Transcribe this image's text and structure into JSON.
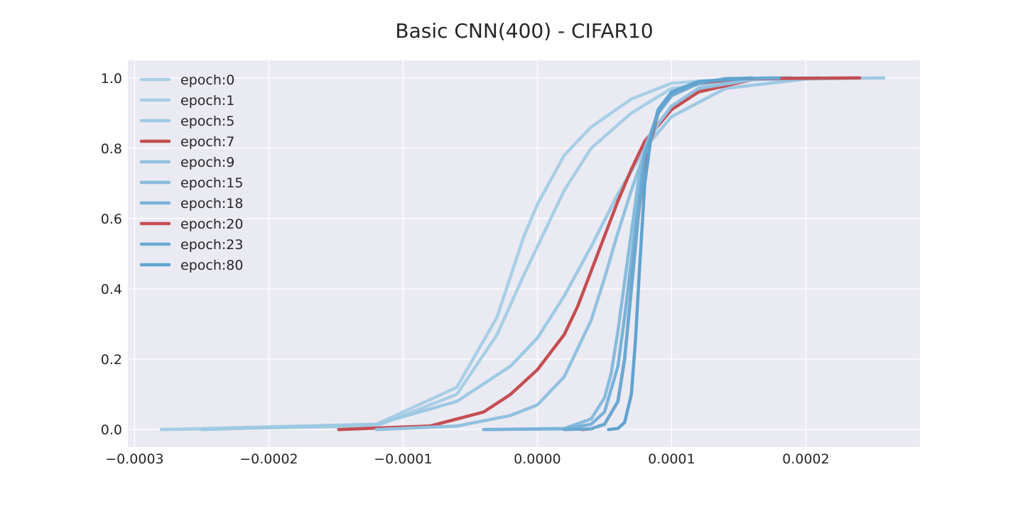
{
  "chart_data": {
    "type": "line",
    "title": "Basic CNN(400) - CIFAR10",
    "xlabel": "",
    "ylabel": "",
    "xlim": [
      -0.000305,
      0.000285
    ],
    "ylim": [
      -0.05,
      1.05
    ],
    "x_ticks": [
      -0.0003,
      -0.0002,
      -0.0001,
      0.0,
      0.0001,
      0.0002
    ],
    "x_tick_labels": [
      "−0.0003",
      "−0.0002",
      "−0.0001",
      "0.0000",
      "0.0001",
      "0.0002"
    ],
    "y_ticks": [
      0.0,
      0.2,
      0.4,
      0.6,
      0.8,
      1.0
    ],
    "y_tick_labels": [
      "0.0",
      "0.2",
      "0.4",
      "0.6",
      "0.8",
      "1.0"
    ],
    "grid": true,
    "background": "#eaeaf2",
    "grid_color": "#ffffff",
    "legend_position": "upper-left",
    "series": [
      {
        "name": "epoch:0",
        "color": "#a9cfe6",
        "x": [
          -0.00028,
          -0.00012,
          -6e-05,
          -3e-05,
          -1e-05,
          0.0,
          1e-05,
          2e-05,
          4e-05,
          7e-05,
          0.0001,
          0.00015,
          0.00019
        ],
        "y": [
          0.0,
          0.015,
          0.12,
          0.32,
          0.55,
          0.64,
          0.71,
          0.78,
          0.86,
          0.94,
          0.985,
          0.998,
          1.0
        ]
      },
      {
        "name": "epoch:1",
        "color": "#a8cee5",
        "x": [
          -0.00028,
          -0.00012,
          -6e-05,
          -3e-05,
          -1e-05,
          0.0,
          1e-05,
          2e-05,
          4e-05,
          7e-05,
          0.0001,
          0.00015,
          0.00019
        ],
        "y": [
          0.0,
          0.01,
          0.1,
          0.27,
          0.44,
          0.52,
          0.6,
          0.68,
          0.8,
          0.9,
          0.97,
          0.995,
          1.0
        ]
      },
      {
        "name": "epoch:5",
        "color": "#9ec9e3",
        "x": [
          -0.00025,
          -0.00012,
          -6e-05,
          -2e-05,
          0.0,
          2e-05,
          4e-05,
          6e-05,
          8e-05,
          0.0001,
          0.00014,
          0.0002,
          0.000258
        ],
        "y": [
          0.0,
          0.015,
          0.08,
          0.18,
          0.26,
          0.38,
          0.52,
          0.67,
          0.8,
          0.89,
          0.97,
          0.997,
          1.0
        ]
      },
      {
        "name": "epoch:7",
        "color": "#c44e52",
        "x": [
          -0.000148,
          -8e-05,
          -4e-05,
          -2e-05,
          0.0,
          2e-05,
          3e-05,
          4e-05,
          5e-05,
          6e-05,
          7e-05,
          8e-05,
          0.0001,
          0.00012,
          0.00016,
          0.00019
        ],
        "y": [
          0.0,
          0.01,
          0.05,
          0.1,
          0.17,
          0.27,
          0.35,
          0.45,
          0.55,
          0.65,
          0.74,
          0.82,
          0.91,
          0.96,
          0.995,
          1.0
        ]
      },
      {
        "name": "epoch:9",
        "color": "#92c1e0",
        "x": [
          -0.00012,
          -6e-05,
          -2e-05,
          0.0,
          2e-05,
          4e-05,
          5e-05,
          6e-05,
          7e-05,
          8e-05,
          9e-05,
          0.0001,
          0.00012,
          0.00016,
          0.00022
        ],
        "y": [
          0.0,
          0.01,
          0.04,
          0.07,
          0.15,
          0.31,
          0.43,
          0.56,
          0.68,
          0.79,
          0.87,
          0.92,
          0.97,
          0.995,
          1.0
        ]
      },
      {
        "name": "epoch:15",
        "color": "#87bbdc",
        "x": [
          -4e-05,
          2e-05,
          4e-05,
          5e-05,
          5.5e-05,
          6e-05,
          6.5e-05,
          7e-05,
          7.5e-05,
          8e-05,
          9e-05,
          0.0001,
          0.00012,
          0.00016,
          0.00021
        ],
        "y": [
          0.0,
          0.003,
          0.03,
          0.09,
          0.16,
          0.28,
          0.42,
          0.56,
          0.7,
          0.8,
          0.9,
          0.95,
          0.985,
          0.998,
          1.0
        ]
      },
      {
        "name": "epoch:18",
        "color": "#79b2d8",
        "x": [
          -4e-05,
          2e-05,
          4e-05,
          5e-05,
          6e-05,
          6.5e-05,
          7e-05,
          7.5e-05,
          8e-05,
          9e-05,
          0.0001,
          0.00012,
          0.00015,
          0.00019
        ],
        "y": [
          0.0,
          0.002,
          0.015,
          0.05,
          0.18,
          0.32,
          0.48,
          0.64,
          0.78,
          0.9,
          0.95,
          0.985,
          0.998,
          1.0
        ]
      },
      {
        "name": "epoch:20",
        "color": "#c44e52",
        "x": [
          3.3e-05,
          4e-05,
          5e-05,
          6e-05,
          6.5e-05,
          7e-05,
          7.5e-05,
          8e-05,
          9e-05,
          0.0001,
          0.00012,
          0.00015,
          0.00024
        ],
        "y": [
          0.0,
          0.002,
          0.015,
          0.08,
          0.2,
          0.4,
          0.6,
          0.76,
          0.9,
          0.95,
          0.985,
          0.998,
          1.0
        ]
      },
      {
        "name": "epoch:23",
        "color": "#6aa9d3",
        "x": [
          2e-05,
          4e-05,
          5e-05,
          6e-05,
          6.5e-05,
          7e-05,
          7.5e-05,
          8e-05,
          9e-05,
          0.0001,
          0.00012,
          0.00014,
          0.00018
        ],
        "y": [
          0.0,
          0.002,
          0.015,
          0.08,
          0.2,
          0.4,
          0.6,
          0.78,
          0.9,
          0.95,
          0.985,
          0.998,
          1.0
        ]
      },
      {
        "name": "epoch:80",
        "color": "#5fa3d0",
        "x": [
          5.3e-05,
          6e-05,
          6.5e-05,
          7e-05,
          7.3e-05,
          7.6e-05,
          8e-05,
          8.5e-05,
          9e-05,
          0.0001,
          0.00012,
          0.00016
        ],
        "y": [
          0.0,
          0.003,
          0.02,
          0.1,
          0.25,
          0.45,
          0.7,
          0.84,
          0.91,
          0.96,
          0.99,
          1.0
        ]
      }
    ]
  }
}
